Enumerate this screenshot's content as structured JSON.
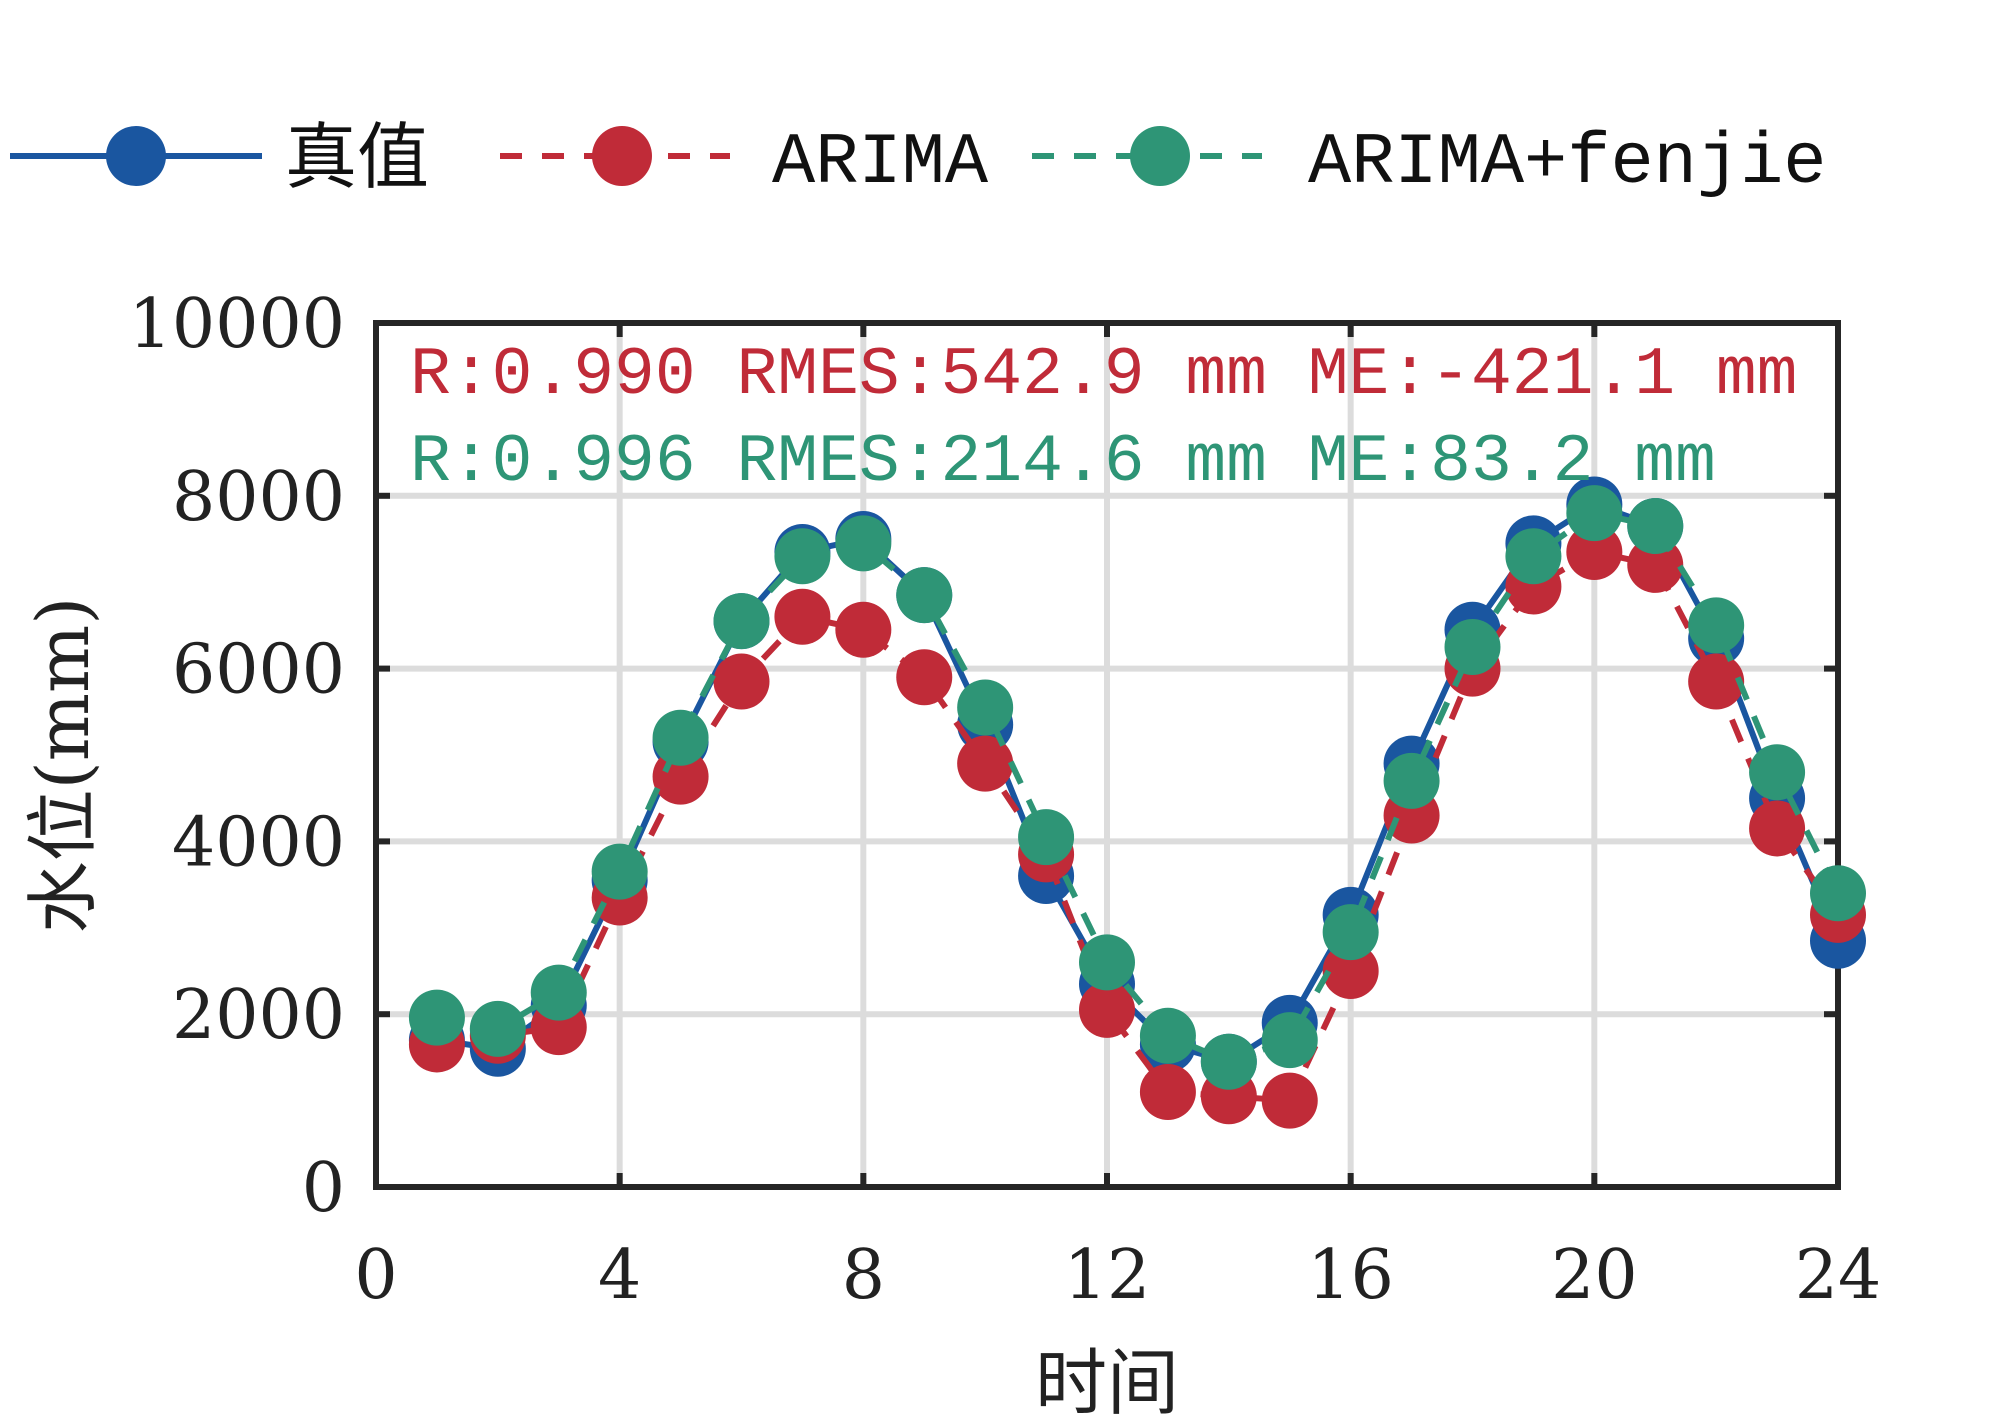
{
  "chart_data": {
    "type": "line",
    "title": "",
    "xlabel": "时间",
    "ylabel": "水位(mm)",
    "xlim": [
      0,
      24
    ],
    "ylim": [
      0,
      10000
    ],
    "xticks": [
      0,
      4,
      8,
      12,
      16,
      20,
      24
    ],
    "yticks": [
      0,
      2000,
      4000,
      6000,
      8000,
      10000
    ],
    "grid": true,
    "legend_position": "top, outside, horizontal",
    "x": [
      1,
      2,
      3,
      4,
      5,
      6,
      7,
      8,
      9,
      10,
      11,
      12,
      13,
      14,
      15,
      16,
      17,
      18,
      19,
      20,
      21,
      22,
      23,
      24
    ],
    "series": [
      {
        "name": "真值",
        "color": "#1a56a0",
        "line": "solid",
        "marker": "circle",
        "values": [
          1700,
          1600,
          2100,
          3550,
          5150,
          6550,
          7350,
          7500,
          6850,
          5350,
          3600,
          2350,
          1650,
          1450,
          1900,
          3150,
          4900,
          6450,
          7450,
          7900,
          7650,
          6350,
          4500,
          2850
        ]
      },
      {
        "name": "ARIMA",
        "color": "#c02b38",
        "line": "dashed",
        "marker": "circle",
        "values": [
          1650,
          1750,
          1850,
          3350,
          4750,
          5850,
          6600,
          6450,
          5900,
          4900,
          3850,
          2050,
          1100,
          1050,
          1000,
          2500,
          4300,
          6000,
          6950,
          7350,
          7200,
          5850,
          4150,
          3150
        ]
      },
      {
        "name": "ARIMA+fenjie",
        "color": "#2e9576",
        "line": "dashed",
        "marker": "circle",
        "values": [
          1960,
          1830,
          2250,
          3650,
          5200,
          6550,
          7300,
          7450,
          6850,
          5550,
          4050,
          2600,
          1750,
          1450,
          1700,
          2950,
          4700,
          6250,
          7300,
          7800,
          7650,
          6500,
          4800,
          3400
        ]
      }
    ],
    "annotations": [
      {
        "text": "R:0.990  RMES:542.9 mm ME:-421.1 mm",
        "color": "#c02b38"
      },
      {
        "text": "R:0.996  RMES:214.6 mm  ME:83.2 mm",
        "color": "#2e9576"
      }
    ]
  },
  "legend": {
    "items": [
      {
        "label": "真值"
      },
      {
        "label": "ARIMA"
      },
      {
        "label": "ARIMA+fenjie"
      }
    ]
  },
  "axes": {
    "x_ticks": [
      "0",
      "4",
      "8",
      "12",
      "16",
      "20",
      "24"
    ],
    "y_ticks": [
      "0",
      "2000",
      "4000",
      "6000",
      "8000",
      "10000"
    ],
    "xlabel": "时间",
    "ylabel": "水位(mm)"
  },
  "annotations": {
    "arima": "R:0.990  RMES:542.9 mm ME:-421.1 mm",
    "fenjie": "R:0.996  RMES:214.6 mm  ME:83.2 mm"
  }
}
